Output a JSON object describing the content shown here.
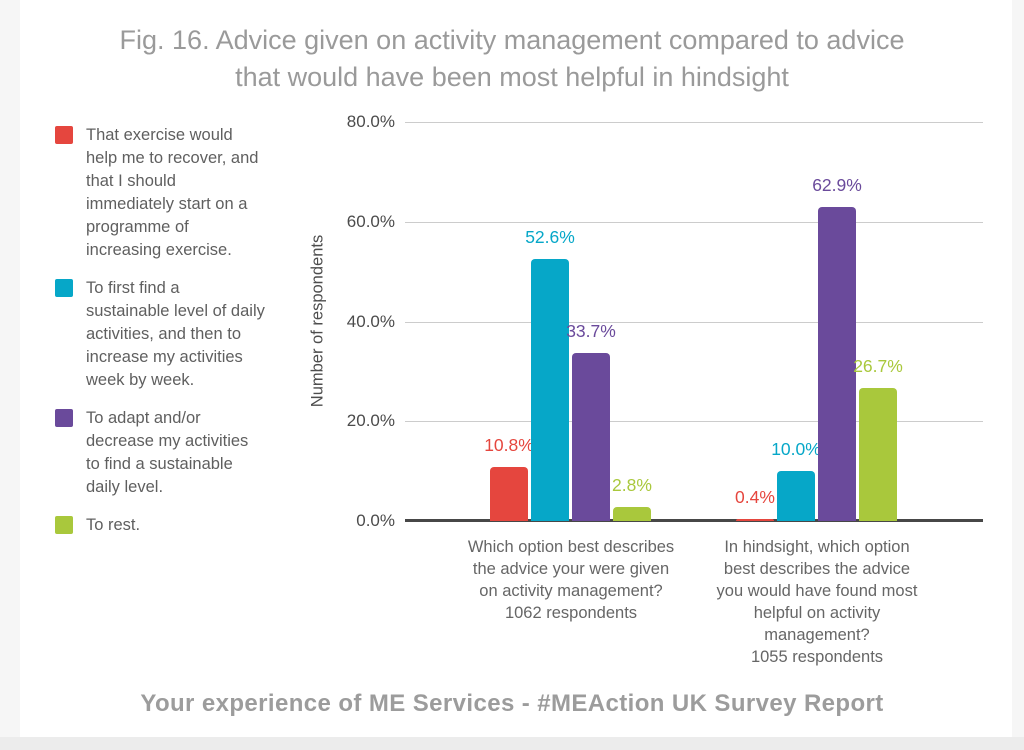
{
  "title": {
    "text": "Fig. 16. Advice given on activity management compared to advice\nthat would have been most helpful in hindsight"
  },
  "legend": {
    "items": [
      {
        "label": "That exercise would help me to recover, and that I should immediately start on a programme of increasing exercise.",
        "color": "#e5463e"
      },
      {
        "label": "To first find a sustainable level of daily activities, and then to increase my activities week by week.",
        "color": "#06a7c8"
      },
      {
        "label": "To adapt and/or decrease my activities to find a sustainable daily level.",
        "color": "#6a4a9b"
      },
      {
        "label": "To rest.",
        "color": "#a9c83c"
      }
    ]
  },
  "chart_data": {
    "type": "bar",
    "title": "Fig. 16. Advice given on activity management compared to advice that would have been most helpful in hindsight",
    "xlabel": "",
    "ylabel": "Number of respondents",
    "ylim": [
      0,
      80
    ],
    "grid": true,
    "legend_position": "left",
    "y_ticks": [
      {
        "value": 80,
        "label": "80.0%"
      },
      {
        "value": 60,
        "label": "60.0%"
      },
      {
        "value": 40,
        "label": "40.0%"
      },
      {
        "value": 20,
        "label": "20.0%"
      },
      {
        "value": 0,
        "label": "0.0%"
      }
    ],
    "categories": [
      "Which option best describes\nthe advice your were given\non activity management?\n1062 respondents",
      "In hindsight, which option\nbest describes the advice\nyou would have found most\nhelpful on activity\nmanagement?\n1055 respondents"
    ],
    "series": [
      {
        "name": "That exercise would help me to recover, and that I should immediately start on a programme of increasing exercise.",
        "color": "#e5463e",
        "values": [
          10.8,
          0.4
        ],
        "labels": [
          "10.8%",
          "0.4%"
        ]
      },
      {
        "name": "To first find a sustainable level of daily activities, and then to increase my activities week by week.",
        "color": "#06a7c8",
        "values": [
          52.6,
          10.0
        ],
        "labels": [
          "52.6%",
          "10.0%"
        ]
      },
      {
        "name": "To adapt and/or decrease my activities to find a sustainable daily level.",
        "color": "#6a4a9b",
        "values": [
          33.7,
          62.9
        ],
        "labels": [
          "33.7%",
          "62.9%"
        ]
      },
      {
        "name": "To rest.",
        "color": "#a9c83c",
        "values": [
          2.8,
          26.7
        ],
        "labels": [
          "2.8%",
          "26.7%"
        ]
      }
    ]
  },
  "footer": {
    "text": "Your experience of ME Services - #MEAction UK Survey Report"
  },
  "colors": {
    "title_text": "#9a9a9a",
    "axis_text": "#4b4b4b",
    "category_text": "#666666",
    "gridline": "#cccccc",
    "axis_baseline": "#474747",
    "footer_text": "#9c9c9c"
  }
}
